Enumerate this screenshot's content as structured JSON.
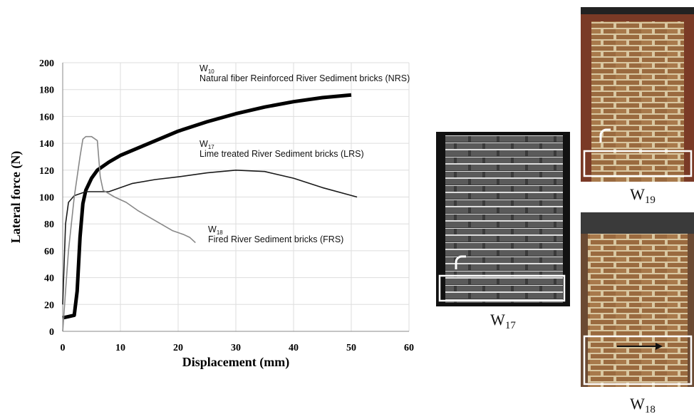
{
  "chart_data": {
    "type": "line",
    "xlabel": "Displacement (mm)",
    "ylabel": "Lateral force (N)",
    "xlim": [
      0,
      60
    ],
    "xticks": [
      0,
      10,
      20,
      30,
      40,
      50,
      60
    ],
    "ylim": [
      0,
      200
    ],
    "yticks": [
      0,
      20,
      40,
      60,
      80,
      100,
      120,
      140,
      160,
      180,
      200
    ],
    "grid": true,
    "series": [
      {
        "color": "#000000",
        "x": [
          0,
          1,
          2,
          2.5,
          3,
          3.5,
          4,
          5,
          6,
          8,
          10,
          15,
          20,
          25,
          30,
          35,
          40,
          45,
          50
        ],
        "values": [
          10,
          11,
          12,
          30,
          70,
          95,
          105,
          114,
          120,
          126,
          131,
          140,
          149,
          156,
          162,
          167,
          171,
          174,
          176
        ]
      },
      {
        "color": "#1a1a1a",
        "x": [
          0,
          0.5,
          1,
          2,
          4,
          8,
          12,
          16,
          20,
          25,
          30,
          35,
          40,
          45,
          51
        ],
        "values": [
          20,
          80,
          96,
          101,
          104,
          104,
          110,
          113,
          115,
          118,
          120,
          119,
          114,
          107,
          100
        ]
      },
      {
        "color": "#888888",
        "x": [
          0,
          0.5,
          1,
          2,
          3,
          3.5,
          4,
          5,
          6,
          6.5,
          7,
          9,
          11,
          13,
          15,
          17,
          19,
          21,
          22,
          23
        ],
        "values": [
          0,
          30,
          60,
          100,
          130,
          143,
          145,
          145,
          142,
          115,
          105,
          100,
          96,
          90,
          85,
          80,
          75,
          72,
          70,
          66
        ]
      }
    ],
    "annotations": [
      {
        "label": "W",
        "sub": "10",
        "text": "Natural fiber Reinforced River Sediment bricks (NRS)"
      },
      {
        "label": "W",
        "sub": "17",
        "text": "Lime treated River Sediment bricks (LRS)"
      },
      {
        "label": "W",
        "sub": "18",
        "text": "Fired River Sediment bricks (FRS)"
      }
    ],
    "photos": [
      {
        "label": "W",
        "sub": "17"
      },
      {
        "label": "W",
        "sub": "19"
      },
      {
        "label": "W",
        "sub": "18"
      }
    ]
  }
}
